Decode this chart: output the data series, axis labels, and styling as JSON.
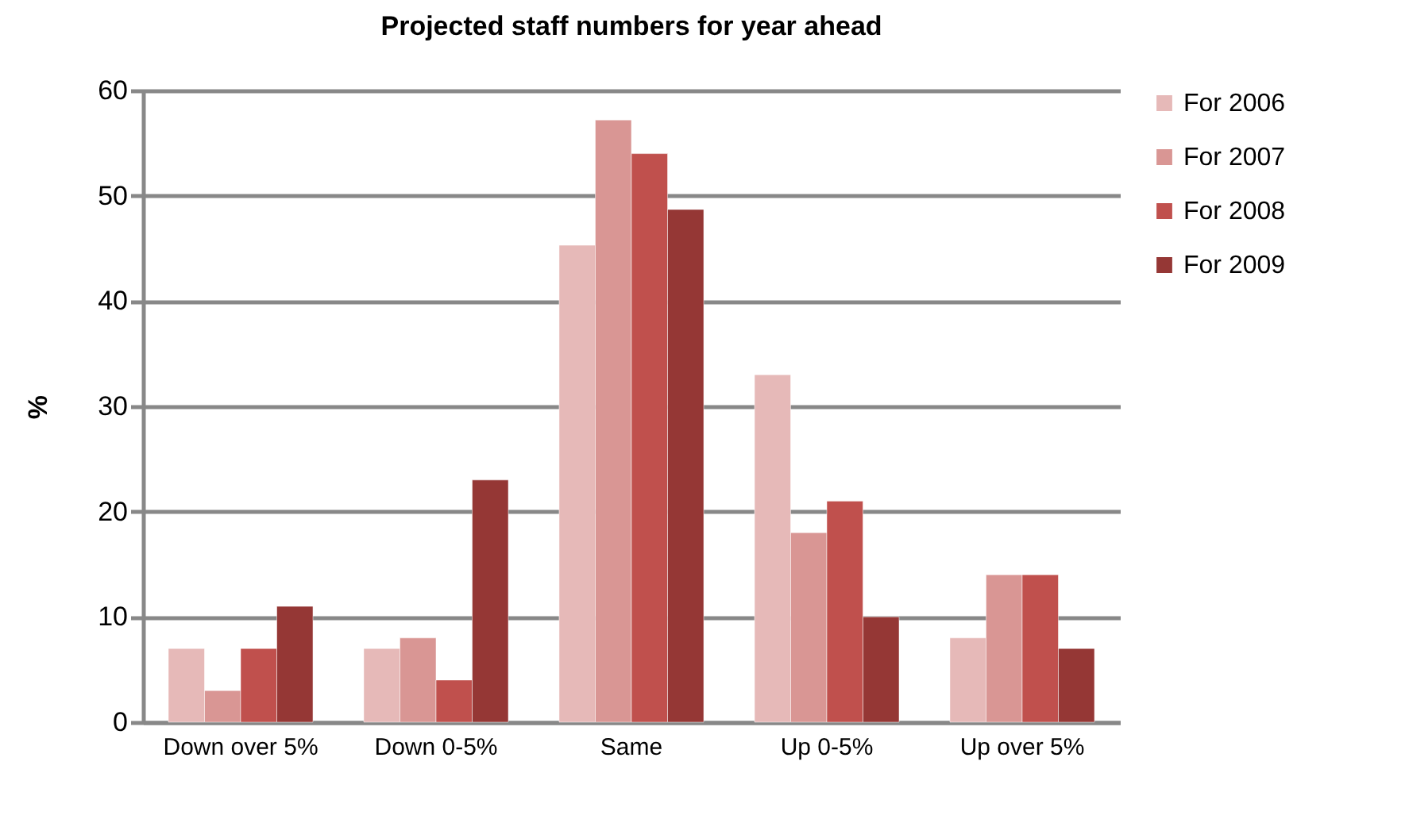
{
  "chart_data": {
    "type": "bar",
    "title": "Projected staff numbers for year ahead",
    "ylabel": "%",
    "categories": [
      "Down over 5%",
      "Down 0-5%",
      "Same",
      "Up 0-5%",
      "Up over 5%"
    ],
    "series": [
      {
        "name": "For 2006",
        "color": "#e6b9b8",
        "values": [
          7,
          7,
          45.3,
          33,
          8
        ]
      },
      {
        "name": "For 2007",
        "color": "#d99694",
        "values": [
          3,
          8,
          57.2,
          18,
          14
        ]
      },
      {
        "name": "For 2008",
        "color": "#c0504d",
        "values": [
          7,
          4,
          54,
          21,
          14
        ]
      },
      {
        "name": "For 2009",
        "color": "#953735",
        "values": [
          11,
          23,
          48.7,
          10,
          7
        ]
      }
    ],
    "ylim": [
      0,
      60
    ],
    "yticks": [
      0,
      10,
      20,
      30,
      40,
      50,
      60
    ],
    "grid": "y",
    "legend": "right"
  }
}
